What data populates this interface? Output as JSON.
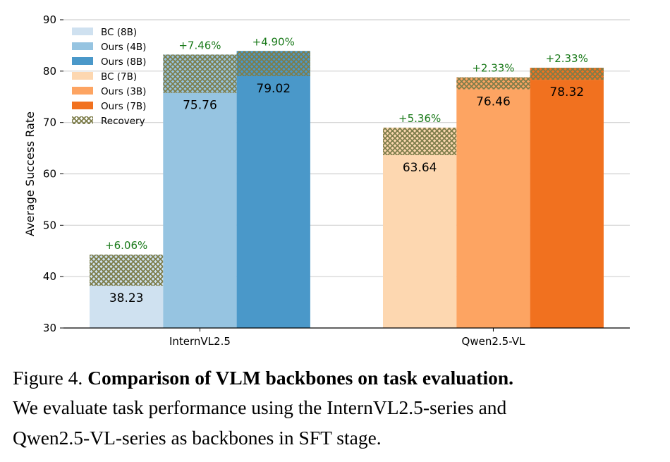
{
  "chart_data": {
    "type": "bar",
    "stacked_overlay": "recovery",
    "ylabel": "Average Success Rate",
    "xlabel": "",
    "ylim": [
      30,
      90
    ],
    "yticks": [
      30,
      40,
      50,
      60,
      70,
      80,
      90
    ],
    "grid": "horizontal",
    "legend_placement": "top-left",
    "categories": [
      "InternVL2.5",
      "Qwen2.5-VL"
    ],
    "groups": [
      {
        "category": "InternVL2.5",
        "bars": [
          {
            "name": "BC (8B)",
            "value": 38.23,
            "recovery": 6.06,
            "recovery_label": "+6.06%",
            "label": "38.23",
            "color": "#cfe1f0"
          },
          {
            "name": "Ours (4B)",
            "value": 75.76,
            "recovery": 7.46,
            "recovery_label": "+7.46%",
            "label": "75.76",
            "color": "#96c4e1"
          },
          {
            "name": "Ours (8B)",
            "value": 79.02,
            "recovery": 4.9,
            "recovery_label": "+4.90%",
            "label": "79.02",
            "color": "#4a98c9"
          }
        ]
      },
      {
        "category": "Qwen2.5-VL",
        "bars": [
          {
            "name": "BC (7B)",
            "value": 63.64,
            "recovery": 5.36,
            "recovery_label": "+5.36%",
            "label": "63.64",
            "color": "#fdd7b0"
          },
          {
            "name": "Ours (3B)",
            "value": 76.46,
            "recovery": 2.33,
            "recovery_label": "+2.33%",
            "label": "76.46",
            "color": "#fda462"
          },
          {
            "name": "Ours (7B)",
            "value": 78.32,
            "recovery": 2.33,
            "recovery_label": "+2.33%",
            "label": "78.32",
            "color": "#f1711f"
          }
        ]
      }
    ],
    "legend": [
      "BC (8B)",
      "Ours (4B)",
      "Ours (8B)",
      "BC (7B)",
      "Ours (3B)",
      "Ours (7B)",
      "Recovery"
    ],
    "recovery_color": "#7d7d4a",
    "annotation_color": "#1a7a1a"
  },
  "caption": {
    "figure_label": "Figure 4.",
    "title": "Comparison of VLM backbones on task evaluation.",
    "line2": "We evaluate task performance using the InternVL2.5-series and",
    "line3": "Qwen2.5-VL-series as backbones in SFT stage."
  }
}
